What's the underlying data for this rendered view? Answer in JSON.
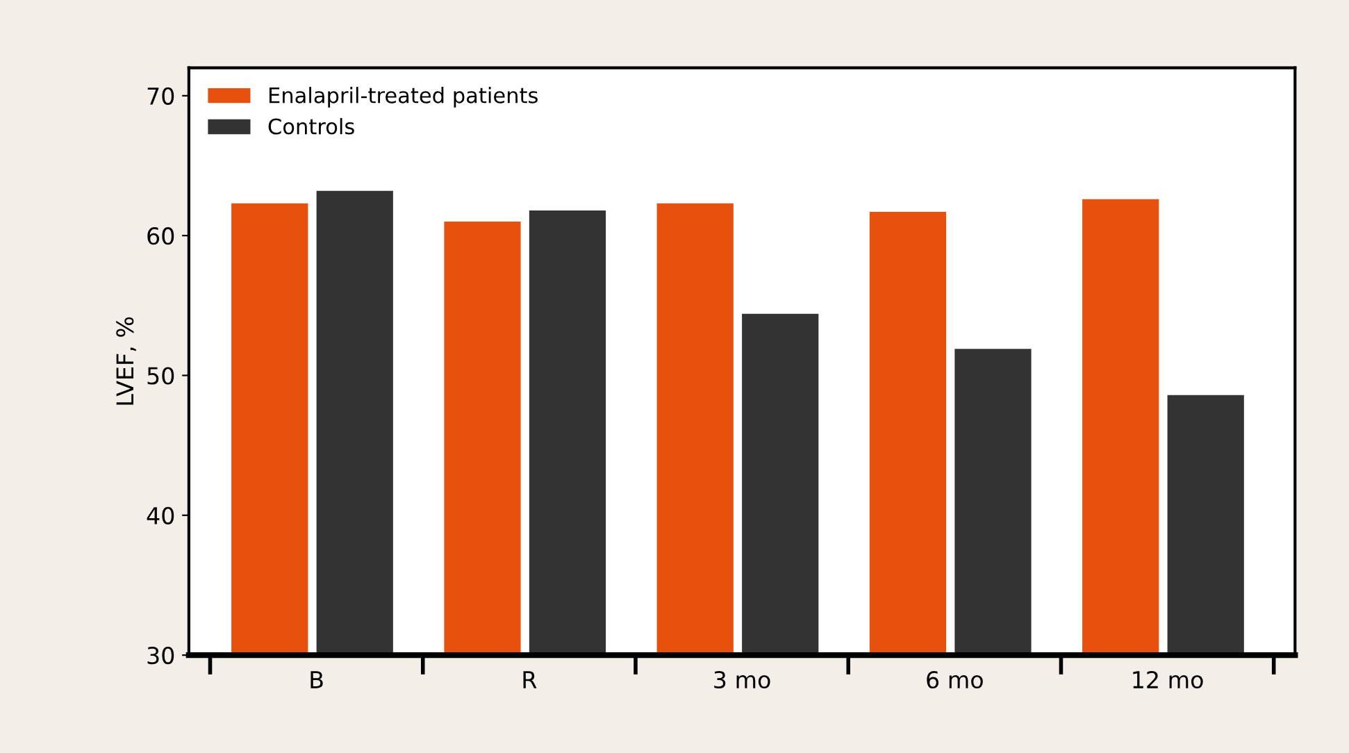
{
  "chart_data": {
    "type": "bar",
    "ylabel": "LVEF, %",
    "categories": [
      "B",
      "R",
      "3 mo",
      "6 mo",
      "12 mo"
    ],
    "series": [
      {
        "name": "Enalapril-treated patients",
        "color": "#e8500e",
        "values": [
          62.3,
          61.0,
          62.3,
          61.7,
          62.6
        ]
      },
      {
        "name": "Controls",
        "color": "#333333",
        "values": [
          63.2,
          61.8,
          54.4,
          51.9,
          48.6
        ]
      }
    ],
    "ylim": [
      30,
      72
    ],
    "yticks": [
      30,
      40,
      50,
      60,
      70
    ],
    "grid": false,
    "legend": "top left"
  }
}
